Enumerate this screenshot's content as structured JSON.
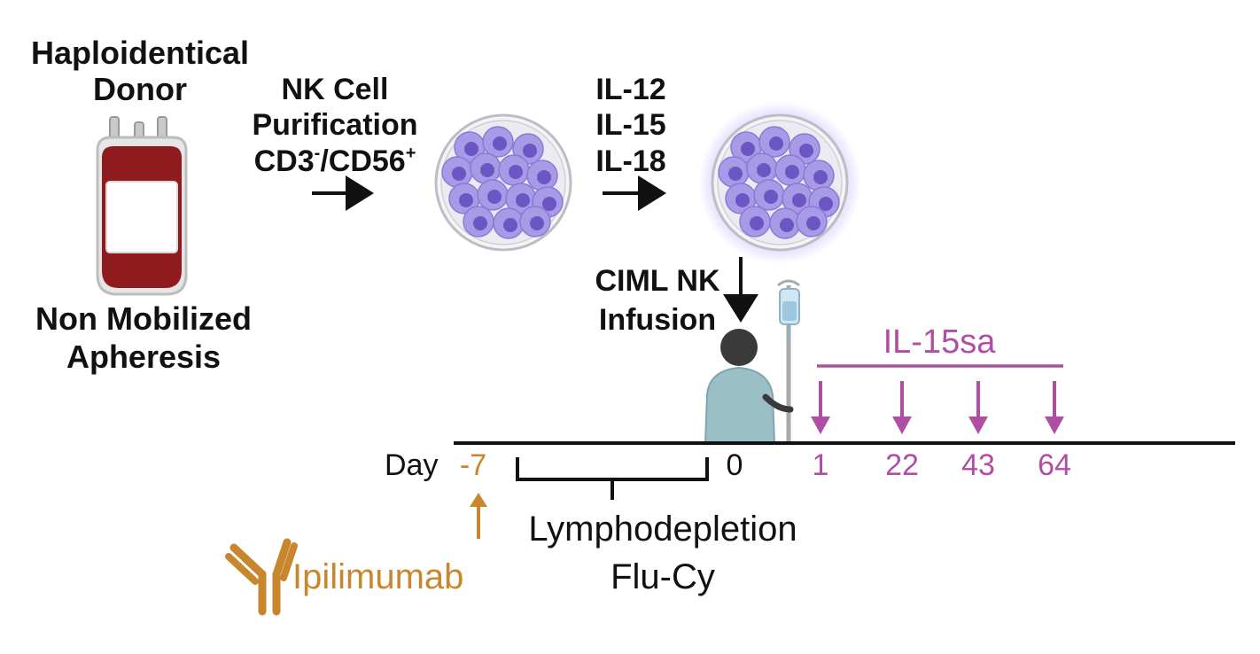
{
  "donor": {
    "title_line1": "Haploidentical",
    "title_line2": "Donor",
    "source_line1": "Non Mobilized",
    "source_line2": "Apheresis"
  },
  "purification": {
    "line1": "NK Cell",
    "line2": "Purification",
    "marker_a": "CD3",
    "marker_a_sup": "-",
    "separator": "/",
    "marker_b": "CD56",
    "marker_b_sup": "+"
  },
  "cytokines": [
    "IL-12",
    "IL-15",
    "IL-18"
  ],
  "infusion": {
    "line1": "CIML NK",
    "line2": "Infusion"
  },
  "il15sa": {
    "label": "IL-15sa",
    "dose_days": [
      "1",
      "22",
      "43",
      "64"
    ]
  },
  "timeline": {
    "day_label": "Day",
    "ipilimumab_day": "-7",
    "infusion_day": "0",
    "lymphodepletion_line1": "Lymphodepletion",
    "lymphodepletion_line2": "Flu-Cy"
  },
  "ipilimumab": {
    "label": "Ipilimumab"
  },
  "colors": {
    "text": "#111111",
    "blood": "#8f1b1f",
    "cell": "#8a7ad6",
    "cell_nucleus": "#6b56c4",
    "il15sa": "#b04ea6",
    "ipilimumab": "#c8872e",
    "patient": "#9bbfc7"
  }
}
